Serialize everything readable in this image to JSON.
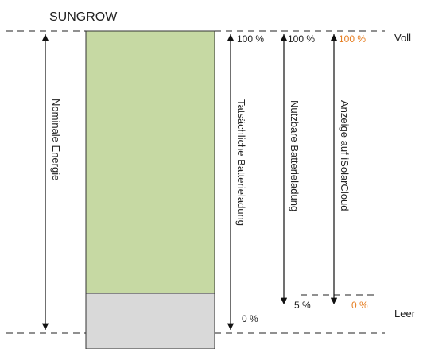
{
  "header": {
    "brand": "SUNGROW"
  },
  "levels": {
    "full": "Voll",
    "empty": "Leer"
  },
  "columns": {
    "nominal": {
      "label": "Nominale Energie"
    },
    "actual": {
      "label": "Tatsächliche Batterieladung",
      "top": "100 %",
      "bottom": "0 %"
    },
    "usable": {
      "label": "Nutzbare Batterieladung",
      "top": "100 %",
      "bottom": "5 %"
    },
    "display": {
      "label": "Anzeige auf iSolarCloud",
      "top": "100 %",
      "bottom": "0 %"
    }
  },
  "colors": {
    "usable_fill": "#c6d9a3",
    "reserve_fill": "#d9d9d9",
    "display_accent": "#e67e22",
    "text": "#222222"
  }
}
